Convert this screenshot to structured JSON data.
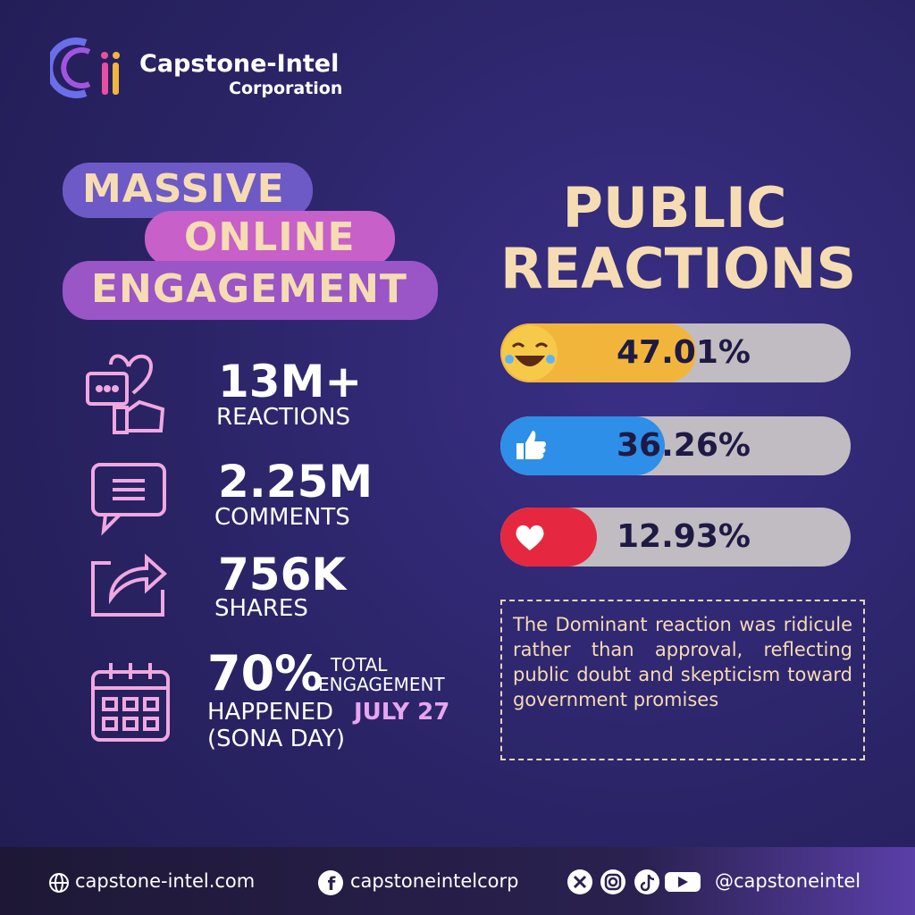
{
  "brand": {
    "name": "Capstone-Intel",
    "sub": "Corporation"
  },
  "engagement": {
    "heading": [
      "MASSIVE",
      "ONLINE",
      "ENGAGEMENT"
    ],
    "stats": [
      {
        "value": "13M+",
        "label": "REACTIONS"
      },
      {
        "value": "2.25M",
        "label": "COMMENTS"
      },
      {
        "value": "756K",
        "label": "SHARES"
      }
    ],
    "highlight": {
      "value": "70%",
      "label": [
        "TOTAL",
        "ENGAGEMENT"
      ],
      "line": "HAPPENED",
      "date": "JULY 27",
      "note": "(SONA DAY)"
    }
  },
  "reactions": {
    "title": [
      "PUBLIC",
      "REACTIONS"
    ],
    "values": [
      47.01,
      36.26,
      12.93
    ],
    "value_labels": [
      "47.01%",
      "36.26%",
      "12.93%"
    ],
    "colors": [
      "#f2b53c",
      "#2d8fe8",
      "#e5283f"
    ],
    "note": "The Dominant reaction was ridicule rather than approval, reflecting public doubt and skepticism toward government promises"
  },
  "footer": {
    "website": "capstone-intel.com",
    "facebook": "capstoneintelcorp",
    "handle": "@capstoneintel"
  }
}
